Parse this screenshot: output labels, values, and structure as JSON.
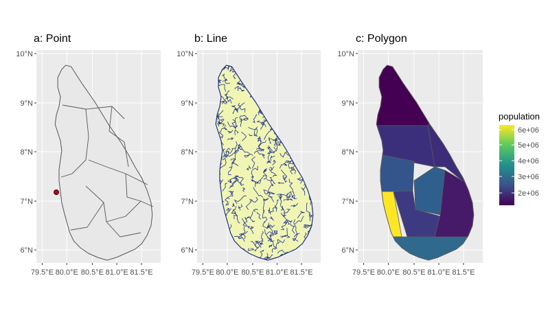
{
  "panels": [
    {
      "title": "a: Point",
      "kind": "point"
    },
    {
      "title": "b: Line",
      "kind": "line"
    },
    {
      "title": "c: Polygon",
      "kind": "polygon"
    }
  ],
  "axes": {
    "y_ticks": [
      "10°N",
      "9°N",
      "8°N",
      "7°N",
      "6°N"
    ],
    "x_ticks": [
      "79.5°E",
      "80.0°E",
      "80.5°E",
      "81.0°E",
      "81.5°E"
    ]
  },
  "legend": {
    "title": "population",
    "labels": [
      "6e+06",
      "5e+06",
      "4e+06",
      "3e+06",
      "2e+06"
    ]
  },
  "colors": {
    "panel_bg": "#ebebeb",
    "grid": "#ffffff",
    "land": "#e8e8e8",
    "border": "#555555",
    "point": "#a50f15",
    "river": "#1e2f8a",
    "river_bg": "#f0f5b4",
    "viridis_low": "#440154",
    "viridis_high": "#fde725"
  }
}
